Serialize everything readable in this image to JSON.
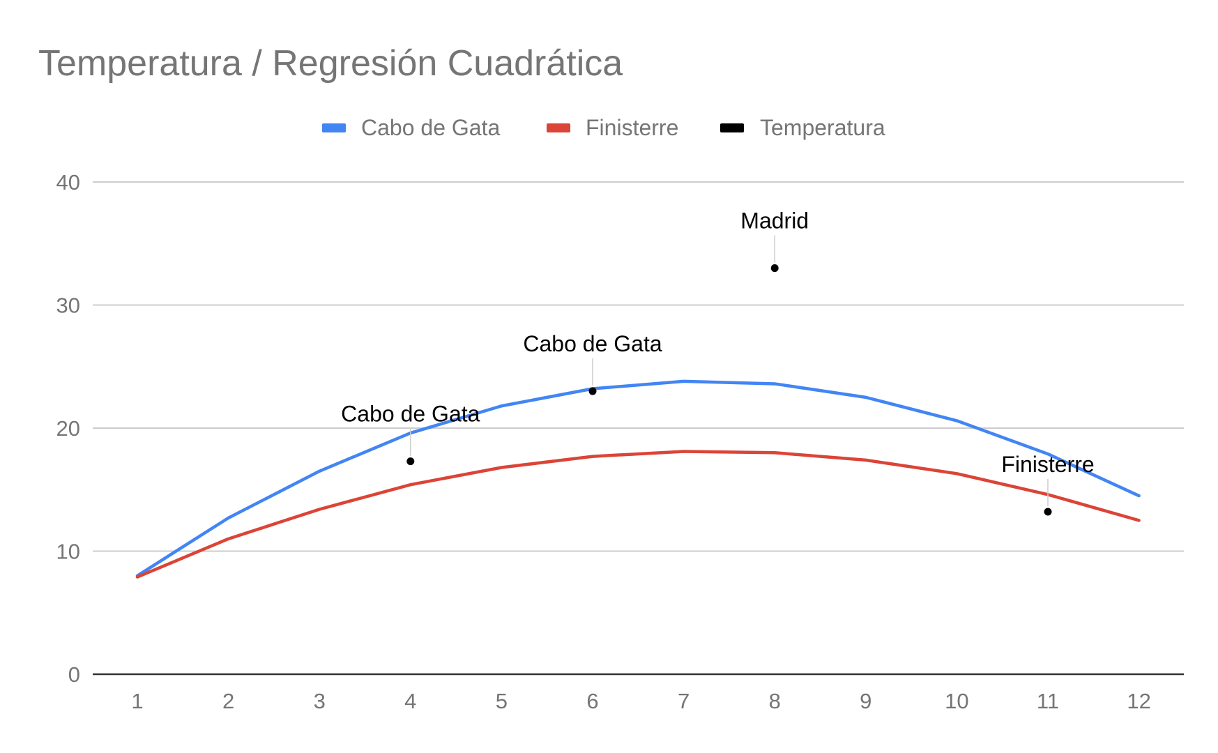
{
  "chart_data": {
    "type": "line",
    "title": "Temperatura / Regresión Cuadrática",
    "xlabel": "",
    "ylabel": "",
    "x": [
      1,
      2,
      3,
      4,
      5,
      6,
      7,
      8,
      9,
      10,
      11,
      12
    ],
    "ylim": [
      0,
      40
    ],
    "yticks": [
      0,
      10,
      20,
      30,
      40
    ],
    "grid": true,
    "legend_position": "top",
    "series": [
      {
        "name": "Cabo de Gata",
        "color": "#4285f4",
        "style": "line",
        "values": [
          8.0,
          12.7,
          16.5,
          19.6,
          21.8,
          23.2,
          23.8,
          23.6,
          22.5,
          20.6,
          17.9,
          14.5
        ]
      },
      {
        "name": "Finisterre",
        "color": "#db4437",
        "style": "line",
        "values": [
          7.9,
          11.0,
          13.4,
          15.4,
          16.8,
          17.7,
          18.1,
          18.0,
          17.4,
          16.3,
          14.6,
          12.5
        ]
      },
      {
        "name": "Temperatura",
        "color": "#000000",
        "style": "points",
        "points": [
          {
            "x": 4,
            "y": 17.3,
            "label": "Cabo de Gata"
          },
          {
            "x": 6,
            "y": 23.0,
            "label": "Cabo de Gata"
          },
          {
            "x": 8,
            "y": 33.0,
            "label": "Madrid"
          },
          {
            "x": 11,
            "y": 13.2,
            "label": "Finisterre"
          }
        ]
      }
    ]
  }
}
